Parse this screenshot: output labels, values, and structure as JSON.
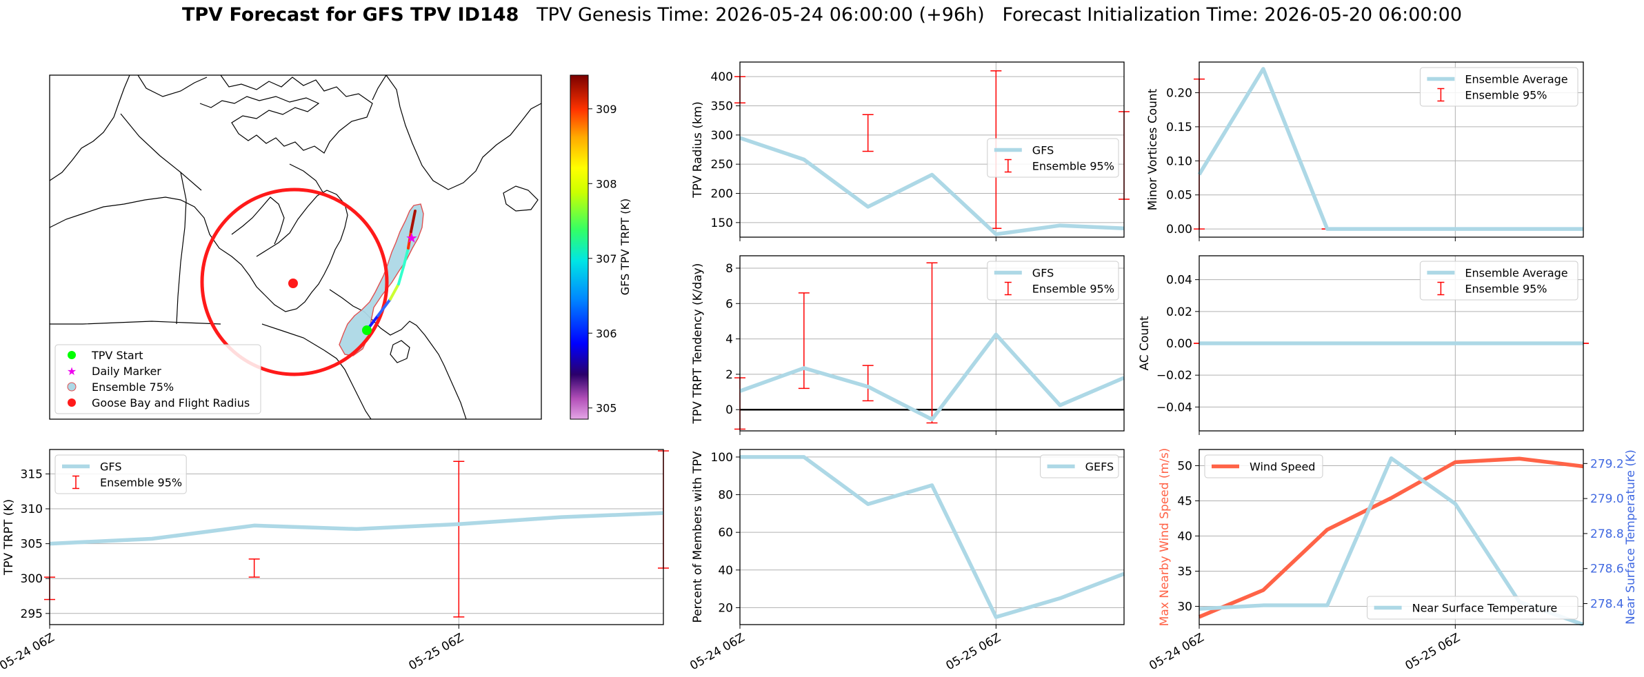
{
  "title": {
    "main": "TPV Forecast for GFS TPV ID148",
    "genesis": "TPV Genesis Time: 2026-05-24 06:00:00 (+96h)",
    "init": "Forecast Initialization Time: 2026-05-20 06:00:00"
  },
  "colors": {
    "gfs_line": "#add8e6",
    "ensemble_bar": "#ff0000",
    "wind_line": "#ff6347",
    "temp_axis": "#4169e1",
    "zero_line": "#000000"
  },
  "map": {
    "colorbar_label": "GFS TPV TRPT (K)",
    "colorbar_ticks": [
      "309",
      "308",
      "307",
      "306",
      "305"
    ],
    "colorbar_range": [
      304.85,
      309.45
    ],
    "legend": [
      "TPV Start",
      "Daily Marker",
      "Ensemble 75%",
      "Goose Bay and Flight Radius"
    ]
  },
  "chart_data": [
    {
      "id": "radius",
      "type": "line",
      "ylabel": "TPV Radius (km)",
      "ylim": [
        125,
        425
      ],
      "yticks": [
        "150",
        "200",
        "250",
        "300",
        "350",
        "400"
      ],
      "grid": true,
      "legend_position": "center-right",
      "legend": [
        "GFS",
        "Ensemble 95%"
      ],
      "x": [
        0,
        1,
        2,
        3,
        4,
        5,
        6
      ],
      "series": [
        {
          "name": "GFS",
          "values": [
            295,
            258,
            177,
            232,
            130,
            145,
            140
          ]
        }
      ],
      "error_bars": [
        {
          "x": 0,
          "low": 355,
          "high": 400
        },
        {
          "x": 2,
          "low": 272,
          "high": 335
        },
        {
          "x": 4,
          "low": 140,
          "high": 410
        },
        {
          "x": 6,
          "low": 190,
          "high": 340
        }
      ]
    },
    {
      "id": "minor_vortices",
      "type": "line",
      "ylabel": "Minor Vortices Count",
      "ylim": [
        -0.012,
        0.245
      ],
      "yticks": [
        "0.00",
        "0.05",
        "0.10",
        "0.15",
        "0.20"
      ],
      "grid": true,
      "legend_position": "top-right",
      "legend": [
        "Ensemble Average",
        "Ensemble 95%"
      ],
      "x": [
        0,
        1,
        2,
        3,
        4,
        5,
        6
      ],
      "series": [
        {
          "name": "Ensemble Average",
          "values": [
            0.08,
            0.235,
            0,
            0,
            0,
            0,
            0
          ]
        }
      ],
      "error_bars": [
        {
          "x": 0,
          "low": 0,
          "high": 0.22
        },
        {
          "x": 2,
          "low": 0,
          "high": 0
        }
      ]
    },
    {
      "id": "tendency",
      "type": "line",
      "ylabel": "TPV TRPT Tendency (K/day)",
      "ylim": [
        -1.2,
        8.7
      ],
      "yticks": [
        "0",
        "2",
        "4",
        "6",
        "8"
      ],
      "grid": true,
      "zero_line": true,
      "legend_position": "top-right",
      "legend": [
        "GFS",
        "Ensemble 95%"
      ],
      "x": [
        0,
        1,
        2,
        3,
        4,
        5,
        6
      ],
      "series": [
        {
          "name": "GFS",
          "values": [
            1.05,
            2.35,
            1.3,
            -0.55,
            4.25,
            0.25,
            1.8
          ]
        }
      ],
      "error_bars": [
        {
          "x": 0,
          "low": -1.1,
          "high": 1.8
        },
        {
          "x": 1,
          "low": 1.2,
          "high": 6.6
        },
        {
          "x": 2,
          "low": 0.5,
          "high": 2.5
        },
        {
          "x": 3,
          "low": -0.75,
          "high": 8.3
        }
      ]
    },
    {
      "id": "ac_count",
      "type": "line",
      "ylabel": "AC Count",
      "ylim": [
        -0.055,
        0.055
      ],
      "yticks": [
        "−0.04",
        "−0.02",
        "0.00",
        "0.02",
        "0.04"
      ],
      "grid": true,
      "legend_position": "top-right",
      "legend": [
        "Ensemble Average",
        "Ensemble 95%"
      ],
      "x": [
        0,
        1,
        2,
        3,
        4,
        5,
        6
      ],
      "series": [
        {
          "name": "Ensemble Average",
          "values": [
            0,
            0,
            0,
            0,
            0,
            0,
            0
          ]
        }
      ],
      "error_bars": [
        {
          "x": 0,
          "low": 0,
          "high": 0
        },
        {
          "x": 2,
          "low": 0,
          "high": 0
        },
        {
          "x": 4,
          "low": 0,
          "high": 0
        },
        {
          "x": 6,
          "low": 0,
          "high": 0
        }
      ]
    },
    {
      "id": "trpt",
      "type": "line",
      "ylabel": "TPV TRPT (K)",
      "ylim": [
        293.4,
        318.5
      ],
      "yticks": [
        "295",
        "300",
        "305",
        "310",
        "315"
      ],
      "grid": true,
      "legend_position": "top-left",
      "legend": [
        "GFS",
        "Ensemble 95%"
      ],
      "x": [
        0,
        1,
        2,
        3,
        4,
        5,
        6
      ],
      "xticks": [
        {
          "x": 0,
          "label": "05-24 06Z"
        },
        {
          "x": 4,
          "label": "05-25 06Z"
        }
      ],
      "series": [
        {
          "name": "GFS",
          "values": [
            305,
            305.7,
            307.6,
            307.1,
            307.8,
            308.8,
            309.4
          ]
        }
      ],
      "error_bars": [
        {
          "x": 0,
          "low": 297,
          "high": 300.2
        },
        {
          "x": 2,
          "low": 300.2,
          "high": 302.8
        },
        {
          "x": 4,
          "low": 294.5,
          "high": 316.8
        },
        {
          "x": 6,
          "low": 301.5,
          "high": 318.3
        }
      ]
    },
    {
      "id": "members",
      "type": "line",
      "ylabel": "Percent of Members with TPV",
      "ylim": [
        11,
        104
      ],
      "yticks": [
        "20",
        "40",
        "60",
        "80",
        "100"
      ],
      "grid": true,
      "legend_position": "top-right",
      "legend": [
        "GEFS"
      ],
      "x": [
        0,
        1,
        2,
        3,
        4,
        5,
        6
      ],
      "xticks": [
        {
          "x": 0,
          "label": "05-24 06Z"
        },
        {
          "x": 4,
          "label": "05-25 06Z"
        }
      ],
      "series": [
        {
          "name": "GEFS",
          "values": [
            100,
            100,
            75,
            85,
            15,
            25,
            38
          ]
        }
      ]
    },
    {
      "id": "wind_temp",
      "type": "line",
      "ylabel": "Max Nearby Wind Speed (m/s)",
      "ylabel_right": "Near Surface Temperature (K)",
      "ylim": [
        27.4,
        52.3
      ],
      "yticks": [
        "30",
        "35",
        "40",
        "45",
        "50"
      ],
      "ylim_right": [
        278.28,
        279.28
      ],
      "yticks_right": [
        "278.4",
        "278.6",
        "278.8",
        "279.0",
        "279.2"
      ],
      "grid": true,
      "legend_position": "top-left",
      "legend": [
        "Wind Speed"
      ],
      "legend_right_position": "bottom-right",
      "legend_right": [
        "Near Surface Temperature"
      ],
      "x": [
        0,
        1,
        2,
        3,
        4,
        5,
        6
      ],
      "xticks": [
        {
          "x": 0,
          "label": "05-24 06Z"
        },
        {
          "x": 4,
          "label": "05-25 06Z"
        }
      ],
      "series": [
        {
          "name": "Wind Speed",
          "values": [
            28.5,
            32.3,
            40.9,
            45.4,
            50.5,
            51.0,
            49.9
          ]
        },
        {
          "name": "Near Surface Temperature",
          "axis": "right",
          "values": [
            278.37,
            278.39,
            278.39,
            279.23,
            278.97,
            278.41,
            278.28
          ]
        }
      ]
    }
  ]
}
